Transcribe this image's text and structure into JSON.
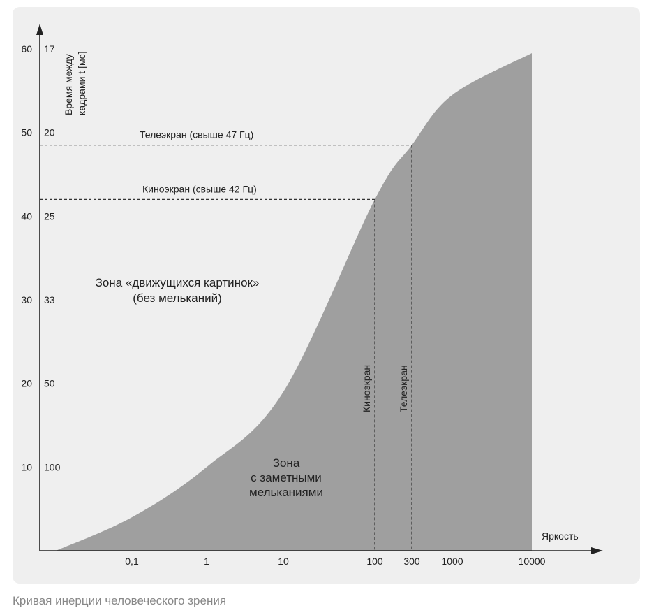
{
  "chart_data": {
    "type": "area",
    "ylabel": "Время между кадрами t [мс]",
    "xlabel": "Яркость",
    "y_ticks_left": [
      "10",
      "20",
      "30",
      "40",
      "50",
      "60"
    ],
    "y_ticks_right": [
      "100",
      "50",
      "33",
      "25",
      "20",
      "17"
    ],
    "x_ticks": [
      "0,1",
      "1",
      "10",
      "100",
      "300",
      "1000",
      "10000"
    ],
    "ylim": [
      0,
      60
    ],
    "x_scale": "log",
    "series": [
      {
        "x": [
          0.02,
          0.1,
          1,
          10,
          100,
          300,
          1000,
          10000
        ],
        "y": [
          0,
          4,
          10,
          19,
          42,
          48.5,
          54.5,
          59.5
        ]
      }
    ],
    "reference_lines": [
      {
        "label": "Телеэкран (свыше 47 Гц)",
        "y": 48.5,
        "x": 300,
        "vertical_label": "Телеэкран"
      },
      {
        "label": "Киноэкран (свыше 42 Гц)",
        "y": 42,
        "x": 100,
        "vertical_label": "Киноэкран"
      }
    ],
    "annotations": {
      "upper_zone": [
        "Зона «движущихся картинок»",
        "(без мельканий)"
      ],
      "lower_zone": [
        "Зона",
        "с заметными",
        "мельканиями"
      ]
    },
    "colors": {
      "area": "#9f9f9f",
      "background": "#efefef",
      "axis": "#222222"
    }
  },
  "caption": "Кривая инерции человеческого зрения"
}
